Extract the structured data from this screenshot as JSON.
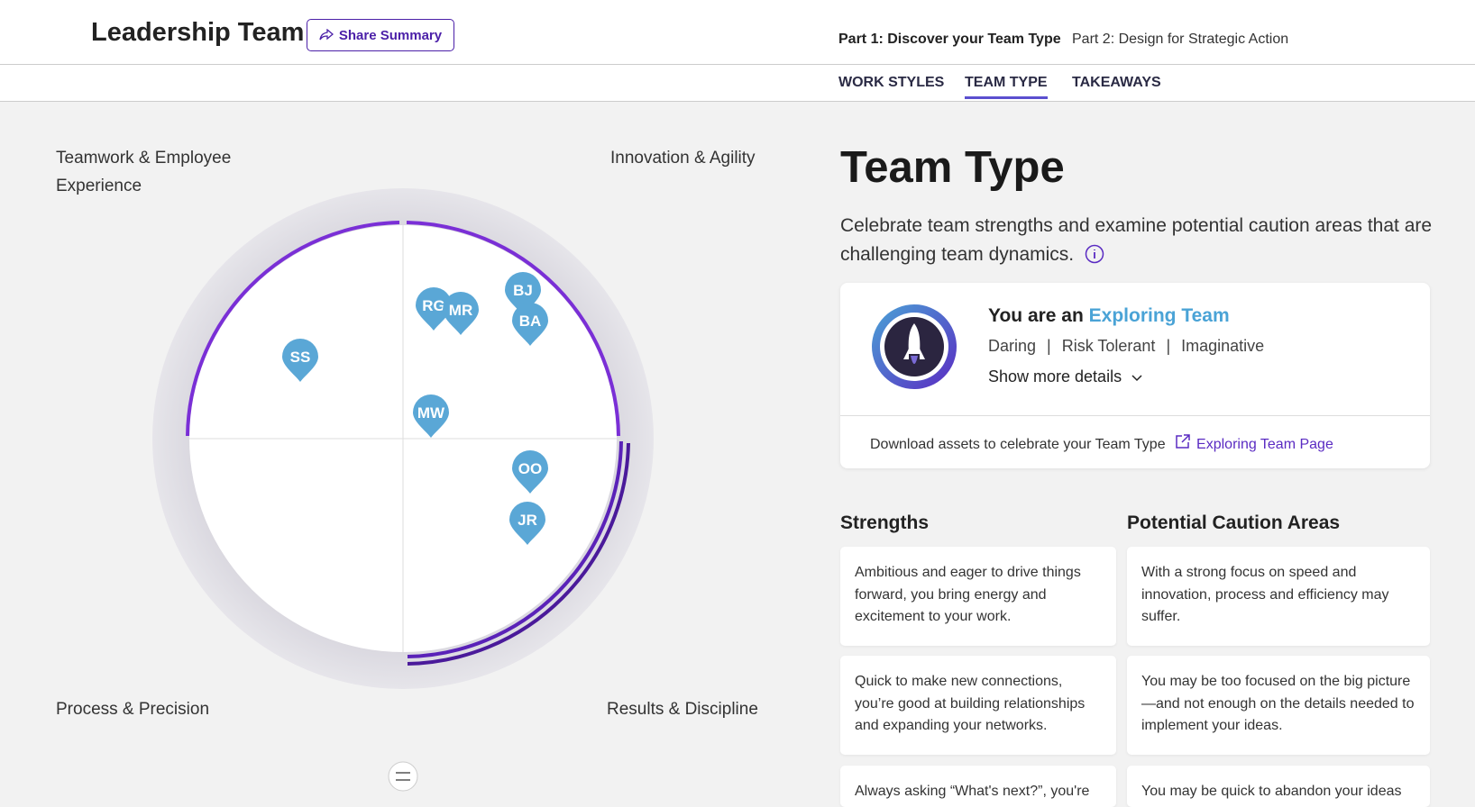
{
  "header": {
    "title": "Leadership Team",
    "share_button": "Share Summary",
    "steps": [
      "Part 1: Discover your Team Type",
      "Part 2: Design for Strategic Action"
    ],
    "tabs": [
      "WORK STYLES",
      "TEAM TYPE",
      "TAKEAWAYS"
    ]
  },
  "quadrants": {
    "top_left": "Teamwork & Employee Experience",
    "top_right": "Innovation & Agility",
    "bottom_left": "Process & Precision",
    "bottom_right": "Results & Discipline"
  },
  "pins": [
    "SS",
    "RG",
    "MR",
    "BJ",
    "BA",
    "MW",
    "OO",
    "JR"
  ],
  "team_type": {
    "title": "Team Type",
    "description": "Celebrate team strengths and examine potential caution areas that are challenging team dynamics.",
    "card": {
      "prefix": "You are an",
      "name": "Exploring Team",
      "traits": [
        "Daring",
        "Risk Tolerant",
        "Imaginative"
      ],
      "more": "Show more details",
      "download": "Download assets to celebrate your Team Type",
      "link": "Exploring Team Page"
    }
  },
  "strengths": {
    "heading": "Strengths",
    "items": [
      "Ambitious and eager to drive things forward, you bring energy and excitement to your work.",
      "Quick to make new connections, you’re good at building relationships and expanding your networks.",
      "Always asking “What's next?”, you're"
    ]
  },
  "cautions": {
    "heading": "Potential Caution Areas",
    "items": [
      "With a strong focus on speed and innovation, process and efficiency may suffer.",
      "You may be too focused on the big picture—and not enough on the details needed to implement your ideas.",
      "You may be quick to abandon your ideas"
    ]
  }
}
